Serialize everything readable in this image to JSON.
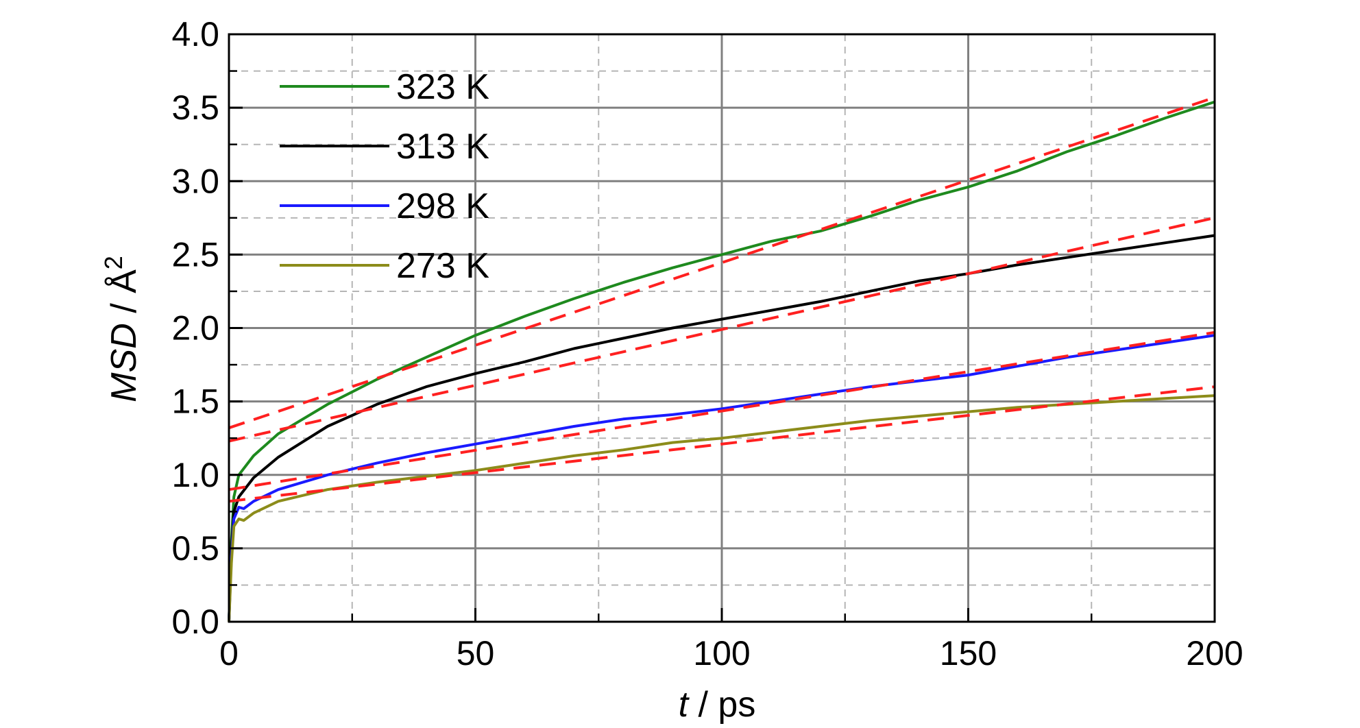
{
  "chart_data": {
    "type": "line",
    "xlabel_italic": "t",
    "xlabel_rest": " / ps",
    "ylabel_italic": "MSD",
    "ylabel_rest": " / Å",
    "ylabel_sup": "2",
    "xlim": [
      0,
      200
    ],
    "ylim": [
      0,
      4.0
    ],
    "x_ticks": [
      0,
      50,
      100,
      150,
      200
    ],
    "x_tick_labels": [
      "0",
      "50",
      "100",
      "150",
      "200"
    ],
    "y_ticks": [
      0,
      0.5,
      1.0,
      1.5,
      2.0,
      2.5,
      3.0,
      3.5,
      4.0
    ],
    "y_tick_labels": [
      "0.0",
      "0.5",
      "1.0",
      "1.5",
      "2.0",
      "2.5",
      "3.0",
      "3.5",
      "4.0"
    ],
    "grid": true,
    "legend_position": "top-left",
    "series": [
      {
        "name": "323 K",
        "color": "#1e8a1e",
        "x": [
          0,
          0.5,
          1,
          2,
          5,
          10,
          20,
          30,
          40,
          50,
          60,
          70,
          80,
          90,
          100,
          110,
          120,
          130,
          140,
          150,
          160,
          170,
          180,
          190,
          200
        ],
        "y": [
          0,
          0.55,
          0.85,
          1.0,
          1.13,
          1.28,
          1.48,
          1.65,
          1.8,
          1.95,
          2.08,
          2.2,
          2.31,
          2.41,
          2.5,
          2.59,
          2.66,
          2.76,
          2.87,
          2.96,
          3.07,
          3.2,
          3.31,
          3.43,
          3.54
        ]
      },
      {
        "name": "313 K",
        "color": "#000000",
        "x": [
          0,
          0.5,
          1,
          2,
          5,
          10,
          20,
          30,
          40,
          50,
          60,
          70,
          80,
          90,
          100,
          110,
          120,
          130,
          140,
          150,
          160,
          170,
          180,
          190,
          200
        ],
        "y": [
          0,
          0.5,
          0.75,
          0.85,
          0.98,
          1.12,
          1.33,
          1.48,
          1.6,
          1.69,
          1.77,
          1.86,
          1.93,
          2.0,
          2.06,
          2.12,
          2.18,
          2.25,
          2.32,
          2.37,
          2.43,
          2.48,
          2.53,
          2.58,
          2.63
        ]
      },
      {
        "name": "298 K",
        "color": "#1a1aff",
        "x": [
          0,
          0.5,
          1,
          2,
          3,
          5,
          10,
          20,
          30,
          40,
          50,
          60,
          70,
          80,
          90,
          100,
          110,
          120,
          130,
          140,
          150,
          160,
          170,
          180,
          190,
          200
        ],
        "y": [
          0,
          0.45,
          0.7,
          0.78,
          0.77,
          0.82,
          0.9,
          1.0,
          1.08,
          1.15,
          1.21,
          1.27,
          1.33,
          1.38,
          1.41,
          1.45,
          1.5,
          1.55,
          1.6,
          1.64,
          1.68,
          1.74,
          1.8,
          1.85,
          1.9,
          1.95
        ]
      },
      {
        "name": "273 K",
        "color": "#8c8c1a",
        "x": [
          0,
          0.5,
          1,
          2,
          3,
          5,
          10,
          20,
          30,
          40,
          50,
          60,
          70,
          80,
          90,
          100,
          110,
          120,
          130,
          140,
          150,
          160,
          170,
          180,
          190,
          200
        ],
        "y": [
          0,
          0.4,
          0.65,
          0.7,
          0.69,
          0.74,
          0.82,
          0.9,
          0.95,
          0.99,
          1.03,
          1.08,
          1.13,
          1.17,
          1.22,
          1.25,
          1.29,
          1.33,
          1.37,
          1.4,
          1.43,
          1.46,
          1.48,
          1.5,
          1.52,
          1.54
        ]
      }
    ],
    "fits": [
      {
        "color": "#ff2020",
        "x": [
          0,
          200
        ],
        "y": [
          1.32,
          3.57
        ]
      },
      {
        "color": "#ff2020",
        "x": [
          0,
          200
        ],
        "y": [
          1.23,
          2.75
        ]
      },
      {
        "color": "#ff2020",
        "x": [
          0,
          200
        ],
        "y": [
          0.9,
          1.97
        ]
      },
      {
        "color": "#ff2020",
        "x": [
          0,
          200
        ],
        "y": [
          0.82,
          1.6
        ]
      }
    ]
  }
}
